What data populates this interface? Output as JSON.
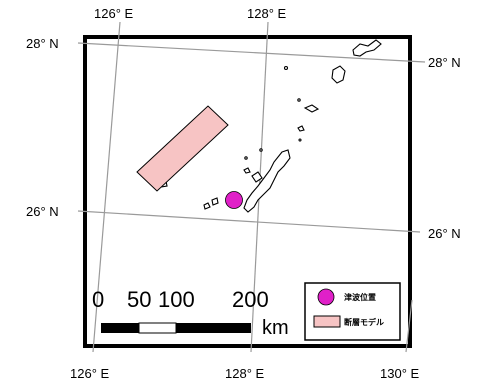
{
  "map": {
    "graticule_labels": {
      "top_126": "126° E",
      "top_128": "128° E",
      "bottom_126": "126° E",
      "bottom_128": "128° E",
      "bottom_130": "130° E",
      "left_28": "28° N",
      "left_26": "26° N",
      "right_28": "28° N",
      "right_26": "26° N"
    },
    "scale_bar": {
      "tick_0": "0",
      "tick_50": "50",
      "tick_100": "100",
      "tick_200": "200",
      "unit": "km"
    },
    "legend": {
      "epicenter_label": "津波位置",
      "fault_model_label": "断層モデル"
    },
    "colors": {
      "epicenter": "#e020c8",
      "fault_model_fill": "#f7c4c4",
      "fault_model_stroke": "#000000",
      "frame": "#000000",
      "graticule": "#9a9a9a"
    }
  }
}
